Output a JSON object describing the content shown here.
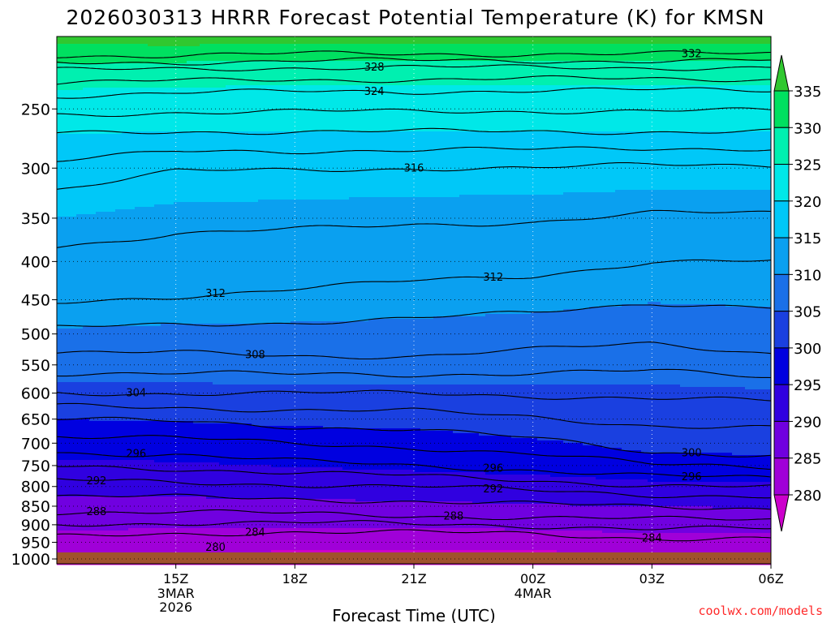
{
  "title": "2026030313 HRRR Forecast Potential Temperature (K) for KMSN",
  "site": "coolwx.com/models",
  "colors": {
    "ground": "#a0522d",
    "contour": "#000000",
    "link": "#ff2a2a"
  },
  "chart_data": {
    "type": "contour",
    "title": "2026030313 HRRR Forecast Potential Temperature (K) for KMSN",
    "xlabel": "Forecast Time (UTC)",
    "ylabel": "",
    "x_hours": [
      -1,
      17
    ],
    "y_pressure_hpa": [
      200,
      1015
    ],
    "y_scale": "log",
    "grid": true,
    "x_ticks": [
      {
        "hour": 2,
        "label": "15Z",
        "sub": [
          "3MAR",
          "2026"
        ]
      },
      {
        "hour": 5,
        "label": "18Z",
        "sub": []
      },
      {
        "hour": 8,
        "label": "21Z",
        "sub": []
      },
      {
        "hour": 11,
        "label": "00Z",
        "sub": [
          "4MAR"
        ]
      },
      {
        "hour": 14,
        "label": "03Z",
        "sub": []
      },
      {
        "hour": 17,
        "label": "06Z",
        "sub": []
      }
    ],
    "y_ticks": [
      250,
      300,
      350,
      400,
      450,
      500,
      550,
      600,
      650,
      700,
      750,
      800,
      850,
      900,
      950,
      1000
    ],
    "ground_pressure_hpa": 980,
    "contour_interval_K": 2,
    "colorbar": {
      "levels": [
        280,
        285,
        290,
        295,
        300,
        305,
        310,
        315,
        320,
        325,
        330,
        335
      ],
      "colors": [
        "#cc00cc",
        "#a000d8",
        "#7000e0",
        "#3000e0",
        "#0000e0",
        "#1a40e0",
        "#1a70e8",
        "#0aa0f0",
        "#00c8f8",
        "#00e8e8",
        "#00f0b0",
        "#00e060",
        "#30c830"
      ],
      "labels": [
        "280",
        "285",
        "290",
        "295",
        "300",
        "305",
        "310",
        "315",
        "320",
        "325",
        "330",
        "335"
      ]
    },
    "profiles": {
      "hours": [
        -1,
        2,
        5,
        8,
        11,
        14,
        17
      ],
      "isentropes_pressure_hpa": {
        "284": [
          935,
          925,
          920,
          922,
          925,
          938,
          940
        ],
        "288": [
          865,
          865,
          870,
          875,
          880,
          885,
          885
        ],
        "292": [
          785,
          790,
          795,
          800,
          810,
          820,
          825
        ],
        "296": [
          720,
          725,
          740,
          750,
          760,
          775,
          780
        ],
        "300": [
          650,
          655,
          665,
          670,
          690,
          720,
          725
        ],
        "304": [
          600,
          600,
          600,
          600,
          605,
          610,
          615
        ],
        "308": [
          530,
          530,
          535,
          535,
          525,
          515,
          530
        ],
        "312": [
          455,
          445,
          435,
          425,
          418,
          400,
          400
        ],
        "316": [
          320,
          303,
          302,
          300,
          300,
          297,
          297
        ],
        "320": [
          270,
          268,
          268,
          268,
          268,
          268,
          268
        ],
        "324": [
          240,
          238,
          237,
          237,
          236,
          236,
          236
        ],
        "328": [
          222,
          221,
          220,
          220,
          220,
          220,
          220
        ],
        "332": [
          212,
          212,
          211,
          211,
          211,
          211,
          211
        ]
      }
    },
    "contour_labels": [
      {
        "value": "332",
        "hour": 15
      },
      {
        "value": "328",
        "hour": 7
      },
      {
        "value": "324",
        "hour": 7
      },
      {
        "value": "316",
        "hour": 8
      },
      {
        "value": "312",
        "hour": 3
      },
      {
        "value": "312",
        "hour": 10
      },
      {
        "value": "308",
        "hour": 4
      },
      {
        "value": "304",
        "hour": 1
      },
      {
        "value": "300",
        "hour": 15
      },
      {
        "value": "296",
        "hour": 1
      },
      {
        "value": "296",
        "hour": 10
      },
      {
        "value": "296",
        "hour": 15
      },
      {
        "value": "292",
        "hour": 0
      },
      {
        "value": "292",
        "hour": 10
      },
      {
        "value": "288",
        "hour": 0
      },
      {
        "value": "288",
        "hour": 9
      },
      {
        "value": "284",
        "hour": 4
      },
      {
        "value": "284",
        "hour": 14
      },
      {
        "value": "280",
        "hour": 3
      }
    ]
  }
}
